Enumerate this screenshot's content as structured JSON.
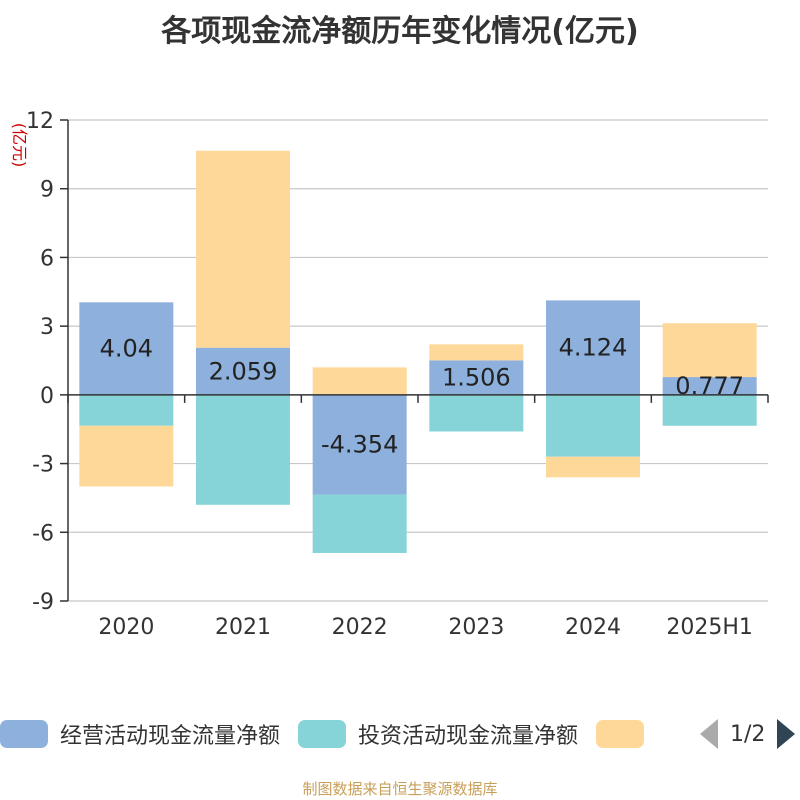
{
  "title": "各项现金流净额历年变化情况(亿元)",
  "unit_label": "(亿元)",
  "footer": "制图数据来自恒生聚源数据库",
  "legend": {
    "items": [
      "经营活动现金流量净额",
      "投资活动现金流量净额",
      ""
    ],
    "page": "1/2"
  },
  "colors": {
    "operating": "#8eb0dc",
    "investing": "#86d4d8",
    "financing": "#fed898",
    "axis": "#333333",
    "grid": "#c8c8c8",
    "unit": "#cc0000"
  },
  "chart_data": {
    "type": "bar",
    "stacked": true,
    "categories": [
      "2020",
      "2021",
      "2022",
      "2023",
      "2024",
      "2025H1"
    ],
    "series": [
      {
        "name": "经营活动现金流量净额",
        "values": [
          4.04,
          2.059,
          -4.354,
          1.506,
          4.124,
          0.777
        ],
        "labels": [
          "4.04",
          "2.059",
          "-4.354",
          "1.506",
          "4.124",
          "0.777"
        ]
      },
      {
        "name": "投资活动现金流量净额",
        "values": [
          -1.35,
          -4.8,
          -2.55,
          -1.6,
          -2.7,
          -1.35
        ]
      },
      {
        "name": "",
        "values": [
          -2.65,
          8.6,
          1.2,
          0.7,
          -0.9,
          2.35
        ]
      }
    ],
    "ylim": [
      -9,
      12
    ],
    "yticks": [
      12,
      9,
      6,
      3,
      0,
      -3,
      -6,
      -9
    ],
    "ylabel": "(亿元)",
    "grid": true
  }
}
